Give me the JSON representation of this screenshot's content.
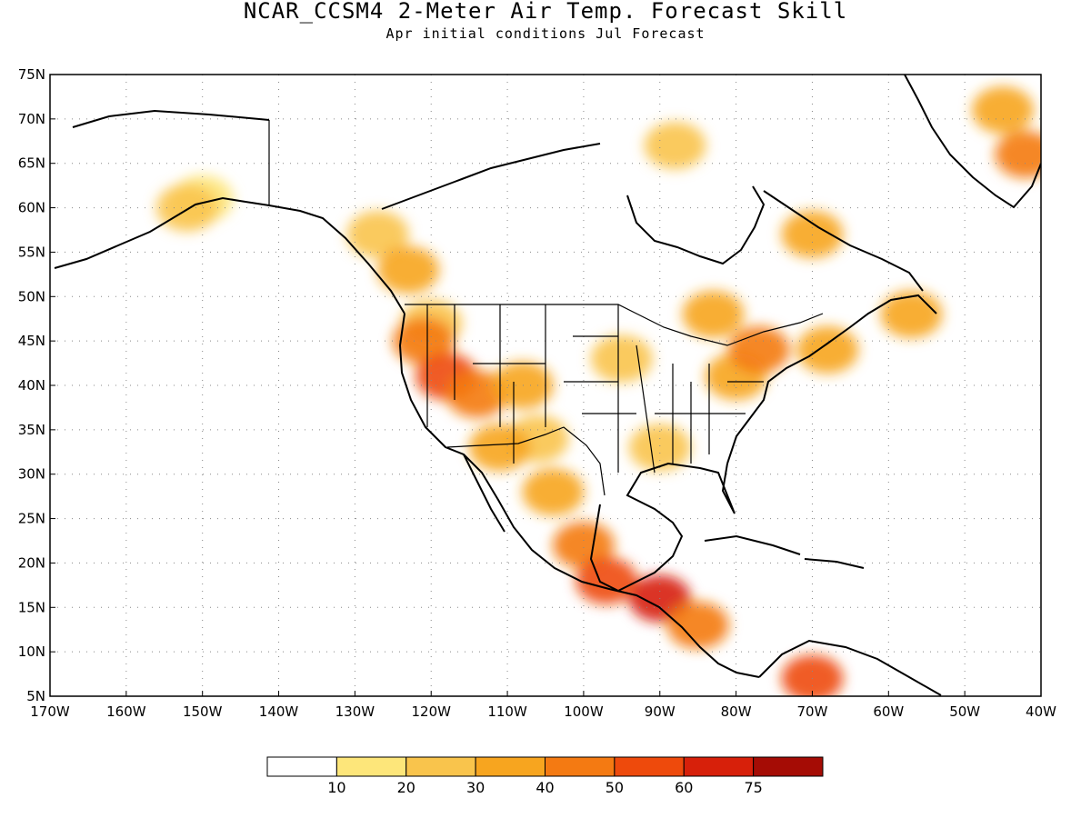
{
  "title": "NCAR_CCSM4 2-Meter Air Temp. Forecast Skill",
  "subtitle": "Apr initial conditions  Jul Forecast",
  "lat_labels": [
    "75N",
    "70N",
    "65N",
    "60N",
    "55N",
    "50N",
    "45N",
    "40N",
    "35N",
    "30N",
    "25N",
    "20N",
    "15N",
    "10N",
    "5N"
  ],
  "lon_labels": [
    "170W",
    "160W",
    "150W",
    "140W",
    "130W",
    "120W",
    "110W",
    "100W",
    "90W",
    "80W",
    "70W",
    "60W",
    "50W",
    "40W"
  ],
  "colorbar": {
    "colors": [
      "#ffffff",
      "#fde67a",
      "#f9c44c",
      "#f7a51f",
      "#f47a12",
      "#ee4a0c",
      "#d7200a",
      "#a50c05"
    ],
    "labels": [
      "10",
      "20",
      "30",
      "40",
      "50",
      "60",
      "75"
    ]
  },
  "skill_regions": [
    {
      "level": 1,
      "lon": -150,
      "lat": 61
    },
    {
      "level": 2,
      "lon": -152,
      "lat": 60
    },
    {
      "level": 2,
      "lon": -127,
      "lat": 57
    },
    {
      "level": 3,
      "lon": -123,
      "lat": 53
    },
    {
      "level": 2,
      "lon": -120,
      "lat": 47
    },
    {
      "level": 4,
      "lon": -121,
      "lat": 45
    },
    {
      "level": 5,
      "lon": -118,
      "lat": 41
    },
    {
      "level": 4,
      "lon": -114,
      "lat": 39
    },
    {
      "level": 3,
      "lon": -108,
      "lat": 40
    },
    {
      "level": 2,
      "lon": -106,
      "lat": 34
    },
    {
      "level": 3,
      "lon": -111,
      "lat": 33
    },
    {
      "level": 3,
      "lon": -104,
      "lat": 28
    },
    {
      "level": 4,
      "lon": -100,
      "lat": 22
    },
    {
      "level": 5,
      "lon": -97,
      "lat": 18
    },
    {
      "level": 6,
      "lon": -90,
      "lat": 16
    },
    {
      "level": 4,
      "lon": -85,
      "lat": 13
    },
    {
      "level": 5,
      "lon": -70,
      "lat": 7
    },
    {
      "level": 2,
      "lon": -90,
      "lat": 33
    },
    {
      "level": 3,
      "lon": -80,
      "lat": 41
    },
    {
      "level": 4,
      "lon": -77,
      "lat": 44
    },
    {
      "level": 3,
      "lon": -83,
      "lat": 48
    },
    {
      "level": 3,
      "lon": -70,
      "lat": 57
    },
    {
      "level": 2,
      "lon": -88,
      "lat": 67
    },
    {
      "level": 4,
      "lon": -42,
      "lat": 66
    },
    {
      "level": 3,
      "lon": -45,
      "lat": 71
    },
    {
      "level": 3,
      "lon": -57,
      "lat": 48
    },
    {
      "level": 2,
      "lon": -95,
      "lat": 43
    },
    {
      "level": 3,
      "lon": -68,
      "lat": 44
    }
  ]
}
